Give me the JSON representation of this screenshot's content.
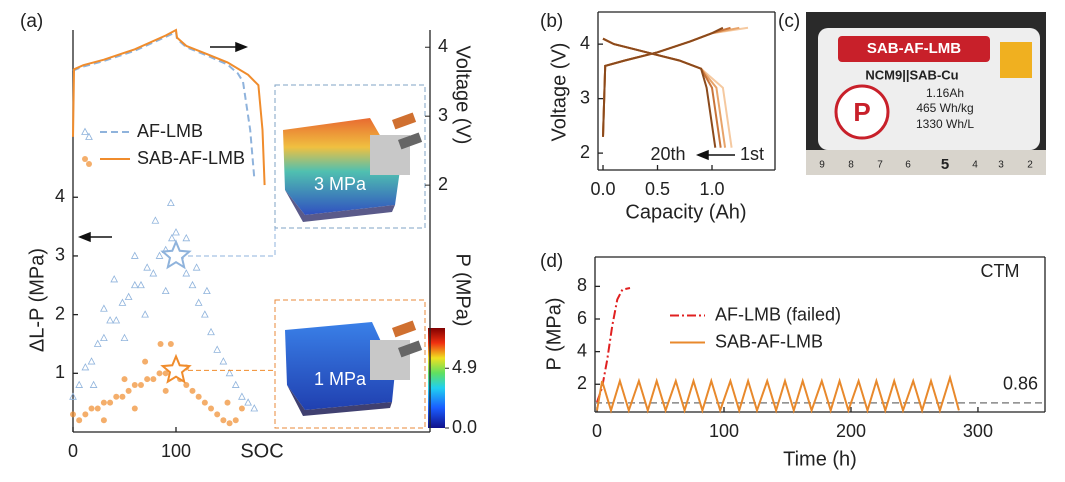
{
  "chart_data": [
    {
      "panel_label": "(a)",
      "type": "scatter",
      "x_label": "SOC",
      "y_label": "ΔL-P (MPa)",
      "y2_label": "Voltage (V)",
      "xlim": [
        0,
        346.6
      ],
      "ylim": [
        0,
        6.85
      ],
      "xticks": [
        0,
        100
      ],
      "yticks": [
        1,
        2,
        3,
        4
      ],
      "y2lim": [
        -1.58,
        4.25
      ],
      "y2ticks": [
        2,
        3,
        4
      ],
      "legend": "upper left",
      "annotations": [
        "3 MPa",
        "1 MPa"
      ],
      "colorbar": {
        "label": "P (MPa)",
        "lim": [
          0,
          8.2
        ],
        "ticks": [
          {
            "value": 0,
            "label": "0.0"
          },
          4.9
        ]
      },
      "series": [
        {
          "name": "AF-LMB",
          "color": "#8fb3dc",
          "marker": "triangle",
          "dash": true,
          "pressure_x": [
            0,
            6,
            12,
            18,
            24,
            30,
            36,
            42,
            48,
            54,
            60,
            66,
            72,
            78,
            84,
            90,
            96,
            100,
            104,
            110,
            116,
            122,
            128,
            134,
            140,
            146,
            152,
            158,
            164,
            170,
            176,
            40,
            60,
            80,
            95,
            70,
            90,
            120,
            50,
            30,
            110,
            130,
            20
          ],
          "pressure": [
            0.6,
            0.8,
            1.1,
            1.2,
            1.5,
            1.6,
            1.9,
            1.9,
            2.2,
            2.3,
            2.5,
            2.5,
            2.8,
            2.7,
            3.0,
            3.1,
            3.3,
            3.4,
            3.0,
            2.7,
            2.5,
            2.2,
            2.0,
            1.7,
            1.4,
            1.2,
            1.0,
            0.8,
            0.6,
            0.5,
            0.4,
            2.6,
            3.0,
            3.6,
            3.9,
            2.0,
            2.4,
            2.8,
            1.6,
            2.1,
            3.3,
            2.4,
            0.8
          ],
          "voltage_x": [
            0,
            3,
            10,
            30,
            60,
            90,
            100,
            101,
            110,
            130,
            150,
            160,
            165,
            172,
            176
          ],
          "voltage": [
            3.66,
            3.68,
            3.72,
            3.8,
            3.95,
            4.15,
            4.22,
            4.12,
            4.0,
            3.88,
            3.75,
            3.62,
            3.5,
            2.8,
            2.1
          ],
          "star": {
            "x": 100,
            "y": 3.0
          }
        },
        {
          "name": "SAB-AF-LMB",
          "color": "#f08c2c",
          "marker": "circle",
          "dash": false,
          "pressure_x": [
            0,
            6,
            12,
            18,
            24,
            30,
            36,
            42,
            48,
            54,
            60,
            66,
            72,
            78,
            84,
            90,
            96,
            100,
            104,
            110,
            116,
            122,
            128,
            134,
            140,
            146,
            152,
            158,
            164,
            70,
            85,
            95,
            50,
            110,
            30,
            150,
            60,
            90
          ],
          "pressure": [
            0.3,
            0.2,
            0.3,
            0.4,
            0.4,
            0.5,
            0.5,
            0.6,
            0.6,
            0.7,
            0.8,
            0.8,
            0.9,
            0.9,
            1.0,
            1.0,
            1.1,
            1.15,
            0.9,
            0.8,
            0.7,
            0.6,
            0.5,
            0.4,
            0.3,
            0.2,
            0.15,
            0.2,
            0.4,
            1.2,
            1.5,
            1.5,
            0.9,
            1.1,
            0.2,
            0.5,
            0.4,
            0.7
          ],
          "voltage_x": [
            0,
            1,
            10,
            30,
            60,
            90,
            100,
            101,
            110,
            130,
            150,
            170,
            180,
            184,
            186
          ],
          "voltage": [
            2.7,
            3.68,
            3.74,
            3.82,
            3.97,
            4.17,
            4.25,
            4.14,
            4.02,
            3.9,
            3.78,
            3.6,
            3.45,
            2.8,
            2.0
          ],
          "star": {
            "x": 100,
            "y": 1.05
          }
        }
      ]
    },
    {
      "panel_label": "(b)",
      "type": "line",
      "x_label": "Capacity (Ah)",
      "y_label": "Voltage (V)",
      "xlim": [
        -0.046,
        1.578
      ],
      "ylim": [
        1.69,
        4.59
      ],
      "xticks": [
        {
          "value": 0,
          "label": "0.0"
        },
        0.5,
        {
          "value": 1,
          "label": "1.0"
        }
      ],
      "yticks": [
        2,
        3,
        4
      ],
      "annotations": [
        "20th",
        "1st"
      ],
      "series": [
        {
          "color": "#f5c9a0",
          "x": [
            0,
            0.02,
            0.2,
            0.5,
            0.8,
            1.0,
            1.33
          ],
          "values": [
            2.3,
            3.6,
            3.7,
            3.85,
            4.05,
            4.2,
            4.3
          ]
        },
        {
          "color": "#e8a46a",
          "x": [
            0,
            0.02,
            0.2,
            0.5,
            0.8,
            1.0,
            1.25
          ],
          "values": [
            2.3,
            3.6,
            3.7,
            3.85,
            4.05,
            4.2,
            4.3
          ]
        },
        {
          "color": "#c8743a",
          "x": [
            0,
            0.02,
            0.2,
            0.5,
            0.8,
            1.0,
            1.17
          ],
          "values": [
            2.3,
            3.6,
            3.7,
            3.85,
            4.05,
            4.2,
            4.3
          ]
        },
        {
          "color": "#8b4a1c",
          "x": [
            0,
            0.02,
            0.2,
            0.5,
            0.8,
            1.0,
            1.1
          ],
          "values": [
            2.3,
            3.6,
            3.7,
            3.85,
            4.05,
            4.2,
            4.3
          ]
        },
        {
          "color": "#f5c9a0",
          "x": [
            0,
            0.1,
            0.4,
            0.7,
            0.9,
            1.1,
            1.18
          ],
          "values": [
            4.1,
            4.0,
            3.85,
            3.7,
            3.55,
            3.2,
            2.1
          ]
        },
        {
          "color": "#e8a46a",
          "x": [
            0,
            0.1,
            0.4,
            0.7,
            0.9,
            1.04,
            1.12
          ],
          "values": [
            4.1,
            4.0,
            3.85,
            3.7,
            3.55,
            3.2,
            2.1
          ]
        },
        {
          "color": "#c8743a",
          "x": [
            0,
            0.1,
            0.4,
            0.7,
            0.9,
            1.0,
            1.08
          ],
          "values": [
            4.1,
            4.0,
            3.85,
            3.7,
            3.55,
            3.2,
            2.1
          ]
        },
        {
          "color": "#8b4a1c",
          "x": [
            0,
            0.1,
            0.4,
            0.7,
            0.9,
            0.95,
            1.03
          ],
          "values": [
            4.1,
            4.0,
            3.85,
            3.7,
            3.55,
            3.2,
            2.1
          ]
        }
      ]
    },
    {
      "panel_label": "(d)",
      "type": "line",
      "x_label": "Time (h)",
      "y_label": "P (MPa)",
      "xlim": [
        -1.6,
        352.8
      ],
      "ylim": [
        0.3,
        9.8
      ],
      "xticks": [
        0,
        100,
        200,
        300
      ],
      "yticks": [
        2,
        4,
        6,
        8
      ],
      "legend": "center left",
      "annotations": [
        "CTM"
      ],
      "ref_line": {
        "value": 0.86,
        "color": "#888888"
      },
      "series": [
        {
          "name": "AF-LMB (failed)",
          "color": "#e02020",
          "dash": "dashdot",
          "x": [
            0,
            4,
            8,
            12,
            16,
            20,
            26
          ],
          "values": [
            0.9,
            1.8,
            3.5,
            5.6,
            7.2,
            7.8,
            7.9
          ]
        },
        {
          "name": "SAB-AF-LMB",
          "color": "#e8892c",
          "x": [
            0,
            4,
            11,
            18,
            25,
            33,
            40,
            47,
            54,
            62,
            69,
            76,
            83,
            90,
            97,
            105,
            112,
            119,
            126,
            134,
            141,
            148,
            155,
            162,
            169,
            177,
            184,
            191,
            198,
            206,
            213,
            220,
            227,
            234,
            241,
            249,
            256,
            263,
            270,
            278,
            285
          ],
          "values": [
            0.4,
            2.2,
            0.4,
            2.2,
            0.4,
            2.2,
            0.4,
            2.2,
            0.4,
            2.2,
            0.4,
            2.2,
            0.4,
            2.2,
            0.4,
            2.2,
            0.4,
            2.2,
            0.4,
            2.2,
            0.4,
            2.2,
            0.4,
            2.2,
            0.4,
            2.2,
            0.4,
            2.2,
            0.4,
            2.2,
            0.4,
            2.2,
            0.4,
            2.2,
            0.4,
            2.2,
            0.4,
            2.2,
            0.4,
            2.4,
            0.4
          ]
        }
      ]
    }
  ],
  "photo": {
    "panel_label": "(c)",
    "banner": "SAB-AF-LMB",
    "lines": [
      "NCM9||SAB-Cu",
      "1.16Ah",
      "465 Wh/kg",
      "1330 Wh/L"
    ],
    "ruler": [
      "9",
      "8",
      "7",
      "6",
      "5",
      "4",
      "3",
      "2"
    ]
  }
}
